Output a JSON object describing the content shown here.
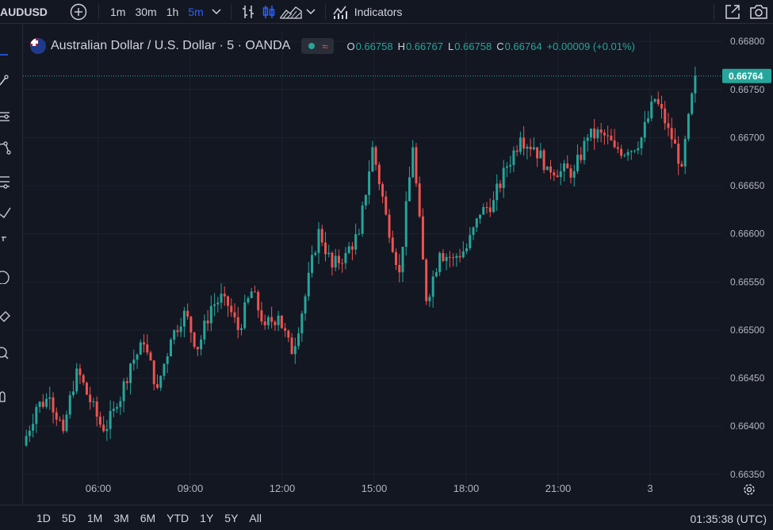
{
  "toolbar": {
    "symbol": "AUDUSD",
    "timeframes": [
      "1m",
      "30m",
      "1h",
      "5m"
    ],
    "active_timeframe": "5m",
    "indicators_label": "Indicators"
  },
  "legend": {
    "title": "Australian Dollar / U.S. Dollar · 5 · OANDA",
    "open_key": "O",
    "open": "0.66758",
    "high_key": "H",
    "high": "0.66767",
    "low_key": "L",
    "low": "0.66758",
    "close_key": "C",
    "close": "0.66764",
    "change": "+0.00009 (+0.01%)"
  },
  "price_axis": {
    "ticks": [
      "0.66800",
      "0.66750",
      "0.66700",
      "0.66650",
      "0.66600",
      "0.66550",
      "0.66500",
      "0.66450",
      "0.66400",
      "0.66350"
    ],
    "last_price": "0.66764"
  },
  "time_axis": {
    "ticks": [
      "06:00",
      "09:00",
      "12:00",
      "15:00",
      "18:00",
      "21:00",
      "3"
    ]
  },
  "bottom": {
    "ranges": [
      "1D",
      "5D",
      "1M",
      "3M",
      "6M",
      "YTD",
      "1Y",
      "5Y",
      "All"
    ],
    "clock": "01:35:38 (UTC)"
  },
  "colors": {
    "up": "#26a69a",
    "down": "#ef5350",
    "background": "#131722",
    "grid": "#1e222d",
    "accent": "#2962ff"
  },
  "chart_data": {
    "type": "candlestick",
    "ylim": [
      0.6634,
      0.6681
    ],
    "close_path": [
      [
        0.6638,
        0.6642
      ],
      [
        0.6642,
        0.6643
      ],
      [
        0.6643,
        0.66395
      ],
      [
        0.66395,
        0.6646
      ],
      [
        0.6646,
        0.66425
      ],
      [
        0.66425,
        0.66395
      ],
      [
        0.66395,
        0.6642
      ],
      [
        0.6642,
        0.66465
      ],
      [
        0.66465,
        0.66485
      ],
      [
        0.66485,
        0.6644
      ],
      [
        0.6644,
        0.6649
      ],
      [
        0.6649,
        0.6652
      ],
      [
        0.6652,
        0.6648
      ],
      [
        0.6648,
        0.66525
      ],
      [
        0.66525,
        0.66535
      ],
      [
        0.66535,
        0.665
      ],
      [
        0.665,
        0.6654
      ],
      [
        0.6654,
        0.66505
      ],
      [
        0.66505,
        0.66515
      ],
      [
        0.66515,
        0.66475
      ],
      [
        0.66475,
        0.66535
      ],
      [
        0.66535,
        0.66605
      ],
      [
        0.66605,
        0.66565
      ],
      [
        0.66565,
        0.6658
      ],
      [
        0.6658,
        0.666
      ],
      [
        0.666,
        0.6669
      ],
      [
        0.6669,
        0.6662
      ],
      [
        0.6662,
        0.6656
      ],
      [
        0.6656,
        0.6669
      ],
      [
        0.6669,
        0.6653
      ],
      [
        0.6653,
        0.6658
      ],
      [
        0.6658,
        0.66575
      ],
      [
        0.66575,
        0.66585
      ],
      [
        0.66585,
        0.6662
      ],
      [
        0.6662,
        0.66635
      ],
      [
        0.66635,
        0.6667
      ],
      [
        0.6667,
        0.667
      ],
      [
        0.667,
        0.6669
      ],
      [
        0.6669,
        0.6667
      ],
      [
        0.6667,
        0.66665
      ],
      [
        0.66665,
        0.66665
      ],
      [
        0.66665,
        0.667
      ],
      [
        0.667,
        0.66705
      ],
      [
        0.66705,
        0.6669
      ],
      [
        0.6669,
        0.66685
      ],
      [
        0.66685,
        0.667
      ],
      [
        0.667,
        0.6674
      ],
      [
        0.6674,
        0.6671
      ],
      [
        0.6671,
        0.6667
      ],
      [
        0.6667,
        0.66764
      ]
    ]
  }
}
